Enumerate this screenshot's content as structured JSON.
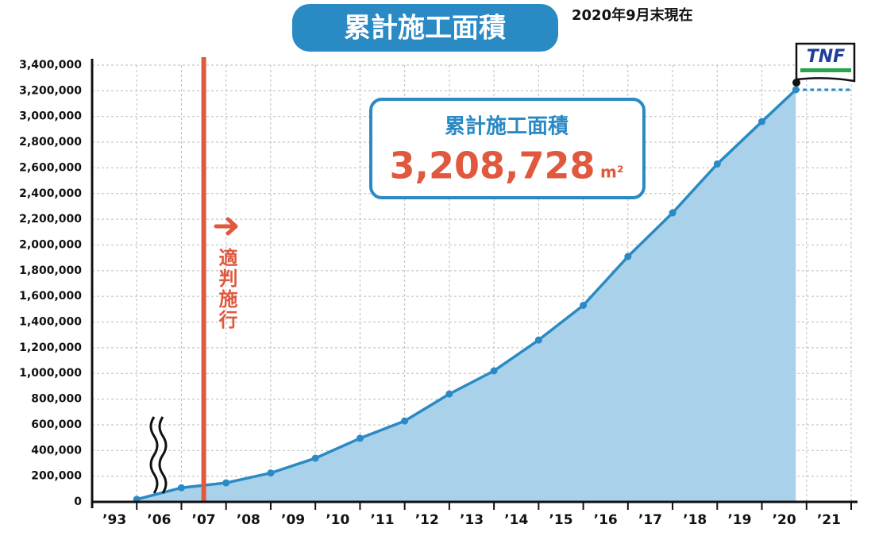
{
  "chart_data": {
    "type": "area",
    "title": "累計施工面積",
    "subtitle": "2020年9月末現在",
    "annotation": "適判施行",
    "logo": "TNF",
    "callout": {
      "title": "累計施工面積",
      "value": "3,208,728",
      "unit": "m²"
    },
    "categories": [
      "’93",
      "’06",
      "’07",
      "’08",
      "’09",
      "’10",
      "’11",
      "’12",
      "’13",
      "’14",
      "’15",
      "’16",
      "’17",
      "’18",
      "’19",
      "’20",
      "’21"
    ],
    "values": [
      20000,
      110000,
      148000,
      225000,
      340000,
      495000,
      630000,
      840000,
      1020000,
      1260000,
      1530000,
      1910000,
      2250000,
      2630000,
      2960000,
      3208728,
      null
    ],
    "color": "#2a8ac4",
    "fill_color": "#a9d1ea",
    "marker_line_color": "#e0583e",
    "ylim": [
      0,
      3400000
    ],
    "yticks": [
      0,
      {
        "value": 200000,
        "label": "200,000"
      },
      {
        "value": 400000,
        "label": "400,000"
      },
      {
        "value": 600000,
        "label": "600,000"
      },
      {
        "value": 800000,
        "label": "800,000"
      },
      {
        "value": 1000000,
        "label": "1,000,000"
      },
      {
        "value": 1200000,
        "label": "1,200,000"
      },
      {
        "value": 1400000,
        "label": "1,400,000"
      },
      {
        "value": 1600000,
        "label": "1,600,000"
      },
      {
        "value": 1800000,
        "label": "1,800,000"
      },
      {
        "value": 2000000,
        "label": "2,000,000"
      },
      {
        "value": 2200000,
        "label": "2,200,000"
      },
      {
        "value": 2400000,
        "label": "2,400,000"
      },
      {
        "value": 2600000,
        "label": "2,600,000"
      },
      {
        "value": 2800000,
        "label": "2,800,000"
      },
      {
        "value": 3000000,
        "label": "3,000,000"
      },
      {
        "value": 3200000,
        "label": "3,200,000"
      },
      {
        "value": 3400000,
        "label": "3,400,000"
      }
    ],
    "grid": true
  }
}
